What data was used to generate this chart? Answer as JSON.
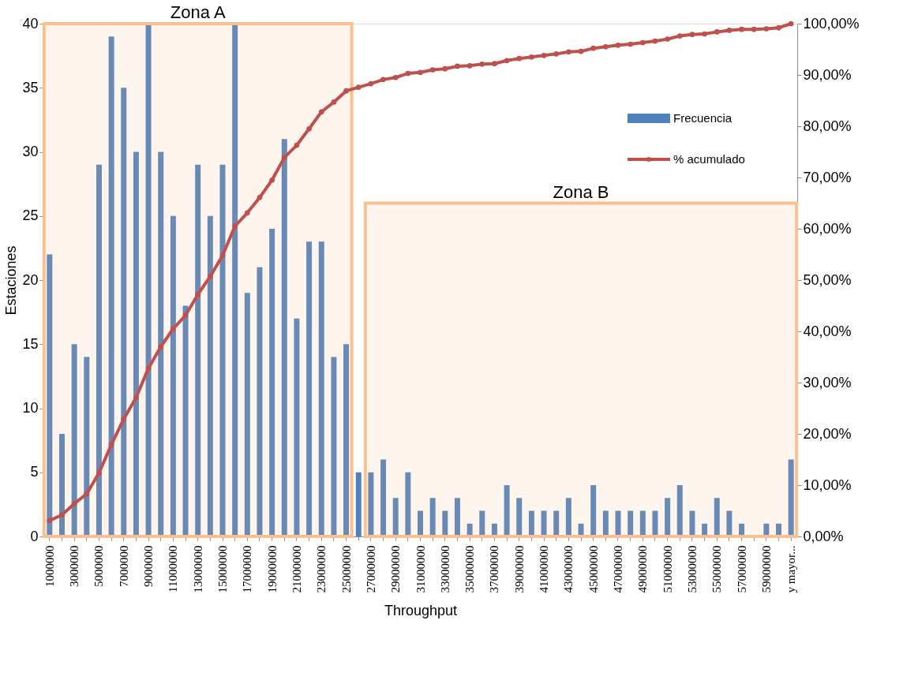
{
  "chart_data": {
    "type": "bar",
    "xlabel": "Throughput",
    "ylabel": "Estaciones",
    "categories": [
      "1000000",
      null,
      "3000000",
      null,
      "5000000",
      null,
      "7000000",
      null,
      "9000000",
      null,
      "11000000",
      null,
      "13000000",
      null,
      "15000000",
      null,
      "17000000",
      null,
      "19000000",
      null,
      "21000000",
      null,
      "23000000",
      null,
      "25000000",
      null,
      "27000000",
      null,
      "29000000",
      null,
      "31000000",
      null,
      "33000000",
      null,
      "35000000",
      null,
      "37000000",
      null,
      "39000000",
      null,
      "41000000",
      null,
      "43000000",
      null,
      "45000000",
      null,
      "47000000",
      null,
      "49000000",
      null,
      "51000000",
      null,
      "53000000",
      null,
      "55000000",
      null,
      "57000000",
      null,
      "59000000",
      null,
      "y mayor..."
    ],
    "series": [
      {
        "name": "Frecuencia",
        "color": "#4f81bd",
        "values": [
          22,
          8,
          15,
          14,
          29,
          39,
          35,
          30,
          40,
          30,
          25,
          18,
          29,
          25,
          29,
          40,
          19,
          21,
          24,
          31,
          17,
          23,
          23,
          14,
          15,
          5,
          5,
          6,
          3,
          5,
          2,
          3,
          2,
          3,
          1,
          2,
          1,
          4,
          3,
          2,
          2,
          2,
          3,
          1,
          4,
          2,
          2,
          2,
          2,
          2,
          3,
          4,
          2,
          1,
          3,
          2,
          1,
          0,
          1,
          1,
          6
        ]
      },
      {
        "name": "% acumulado",
        "type": "line",
        "axis": "y2",
        "color": "#c0504d",
        "marker": "circle",
        "values": [
          3.1,
          4.2,
          6.4,
          8.3,
          12.4,
          17.9,
          22.9,
          27.1,
          32.8,
          37.0,
          40.5,
          43.1,
          47.2,
          50.7,
          54.8,
          60.5,
          63.1,
          66.1,
          69.5,
          73.9,
          76.3,
          79.5,
          82.8,
          84.7,
          86.9,
          87.6,
          88.3,
          89.1,
          89.5,
          90.3,
          90.5,
          91.0,
          91.2,
          91.7,
          91.8,
          92.1,
          92.2,
          92.8,
          93.2,
          93.5,
          93.8,
          94.1,
          94.5,
          94.6,
          95.2,
          95.5,
          95.8,
          96.0,
          96.3,
          96.6,
          97.0,
          97.6,
          97.9,
          98.0,
          98.4,
          98.7,
          98.9,
          98.9,
          99.0,
          99.2,
          100.0
        ]
      }
    ],
    "ylim": [
      0,
      40
    ],
    "yticks": [
      0,
      5,
      10,
      15,
      20,
      25,
      30,
      35,
      40
    ],
    "y2lim": [
      0,
      100
    ],
    "y2ticks": [
      {
        "value": 0,
        "label": "0,00%"
      },
      {
        "value": 10,
        "label": "10,00%"
      },
      {
        "value": 20,
        "label": "20,00%"
      },
      {
        "value": 30,
        "label": "30,00%"
      },
      {
        "value": 40,
        "label": "40,00%"
      },
      {
        "value": 50,
        "label": "50,00%"
      },
      {
        "value": 60,
        "label": "60,00%"
      },
      {
        "value": 70,
        "label": "70,00%"
      },
      {
        "value": 80,
        "label": "80,00%"
      },
      {
        "value": 90,
        "label": "90,00%"
      },
      {
        "value": 100,
        "label": "100,00%"
      }
    ],
    "bands": [
      {
        "axis": "x",
        "from": "1000000",
        "to": "25000000",
        "label": "Zona A",
        "color": "#fac090"
      },
      {
        "axis": "x",
        "from": "27000000",
        "to": "y mayor...",
        "label": "Zona B",
        "color": "#fac090"
      }
    ],
    "grid": false,
    "legend": "right"
  }
}
